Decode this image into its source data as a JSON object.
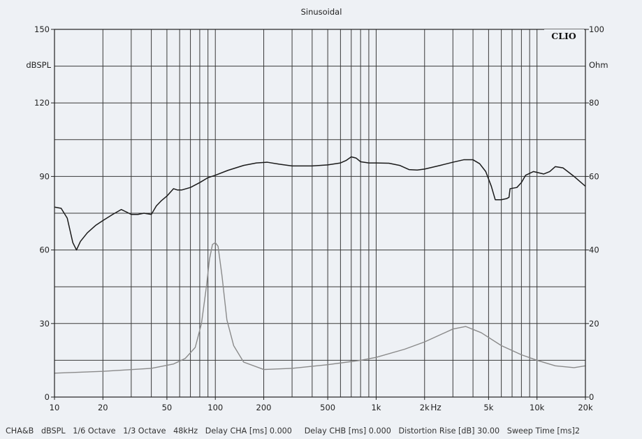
{
  "chart_data": {
    "type": "line",
    "title": "Sinusoidal",
    "logo": "CLIO",
    "x_scale": "log",
    "xlim": [
      10,
      20000
    ],
    "x_unit_label": "Hz",
    "x_ticks": [
      10,
      20,
      50,
      100,
      200,
      500,
      1000,
      2000,
      5000,
      10000,
      20000
    ],
    "x_tick_labels": [
      "10",
      "20",
      "50",
      "100",
      "200",
      "500",
      "1k",
      "2k",
      "5k",
      "10k",
      "20k"
    ],
    "ylabel_left": "dBSPL",
    "ylim_left": [
      0,
      150
    ],
    "y_ticks_left": [
      0,
      30,
      60,
      90,
      120,
      150
    ],
    "ylabel_right": "Ohm",
    "ylim_right": [
      0,
      100
    ],
    "y_ticks_right": [
      0,
      20,
      40,
      60,
      80,
      100
    ],
    "grid": true,
    "series": [
      {
        "axis": "left",
        "color": "#1a1a1a",
        "points": [
          [
            10,
            77.5
          ],
          [
            11,
            77
          ],
          [
            12,
            73
          ],
          [
            13,
            63
          ],
          [
            13.7,
            60
          ],
          [
            14.5,
            63.5
          ],
          [
            16,
            67
          ],
          [
            18,
            70
          ],
          [
            20,
            72
          ],
          [
            23,
            74.5
          ],
          [
            26,
            76.5
          ],
          [
            28,
            75.5
          ],
          [
            30,
            74.5
          ],
          [
            33,
            74.5
          ],
          [
            36,
            75
          ],
          [
            40,
            74.5
          ],
          [
            43,
            78
          ],
          [
            46,
            80
          ],
          [
            50,
            82
          ],
          [
            55,
            85
          ],
          [
            58,
            84.5
          ],
          [
            62,
            84.5
          ],
          [
            70,
            85.5
          ],
          [
            80,
            87.5
          ],
          [
            90,
            89.5
          ],
          [
            100,
            90.5
          ],
          [
            120,
            92.5
          ],
          [
            150,
            94.5
          ],
          [
            180,
            95.5
          ],
          [
            210,
            95.8
          ],
          [
            250,
            95
          ],
          [
            300,
            94.3
          ],
          [
            400,
            94.3
          ],
          [
            500,
            94.7
          ],
          [
            600,
            95.5
          ],
          [
            650,
            96.5
          ],
          [
            700,
            98
          ],
          [
            750,
            97.5
          ],
          [
            800,
            96
          ],
          [
            900,
            95.5
          ],
          [
            1000,
            95.5
          ],
          [
            1200,
            95.4
          ],
          [
            1400,
            94.5
          ],
          [
            1600,
            92.8
          ],
          [
            1800,
            92.6
          ],
          [
            2000,
            93
          ],
          [
            2500,
            94.5
          ],
          [
            3000,
            95.8
          ],
          [
            3500,
            96.8
          ],
          [
            4000,
            96.8
          ],
          [
            4400,
            95.2
          ],
          [
            4800,
            92
          ],
          [
            5200,
            86
          ],
          [
            5500,
            80.5
          ],
          [
            6000,
            80.5
          ],
          [
            6500,
            81
          ],
          [
            6700,
            81.5
          ],
          [
            6800,
            85
          ],
          [
            7500,
            85.5
          ],
          [
            8000,
            87.5
          ],
          [
            8500,
            90.5
          ],
          [
            9500,
            92
          ],
          [
            11000,
            91
          ],
          [
            12000,
            92
          ],
          [
            13000,
            94
          ],
          [
            14500,
            93.5
          ],
          [
            17000,
            90
          ],
          [
            20000,
            86
          ]
        ]
      },
      {
        "axis": "right",
        "color": "#8a8a8a",
        "points": [
          [
            10,
            6.5
          ],
          [
            20,
            7.0
          ],
          [
            40,
            7.8
          ],
          [
            55,
            9.0
          ],
          [
            65,
            10.5
          ],
          [
            75,
            13.5
          ],
          [
            82,
            20
          ],
          [
            88,
            30
          ],
          [
            92,
            37.5
          ],
          [
            96,
            41.5
          ],
          [
            100,
            42
          ],
          [
            104,
            41
          ],
          [
            110,
            33
          ],
          [
            118,
            21
          ],
          [
            130,
            14
          ],
          [
            150,
            9.5
          ],
          [
            200,
            7.5
          ],
          [
            300,
            7.8
          ],
          [
            500,
            8.8
          ],
          [
            800,
            10.0
          ],
          [
            1000,
            10.8
          ],
          [
            1500,
            13
          ],
          [
            2000,
            15
          ],
          [
            3000,
            18.5
          ],
          [
            3600,
            19.2
          ],
          [
            4500,
            17.5
          ],
          [
            6000,
            14
          ],
          [
            8000,
            11.5
          ],
          [
            10000,
            10
          ],
          [
            13000,
            8.5
          ],
          [
            17000,
            8.0
          ],
          [
            20000,
            8.5
          ]
        ]
      }
    ]
  },
  "footer": {
    "text": "CHA&B   dBSPL   1/6 Octave   1/3 Octave   48kHz   Delay CHA [ms] 0.000     Delay CHB [ms] 0.000   Distortion Rise [dB] 30.00   Sweep Time [ms]2"
  }
}
